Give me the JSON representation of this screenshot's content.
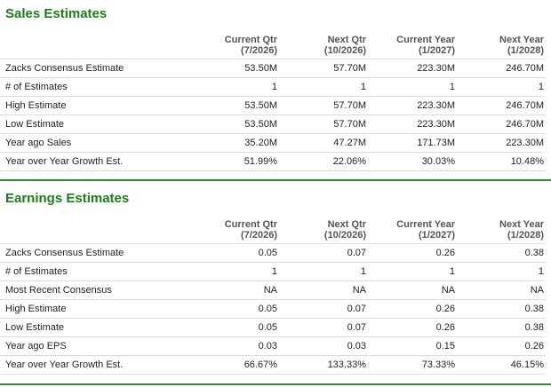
{
  "sales": {
    "title": "Sales Estimates",
    "columns": [
      {
        "label": "Current Qtr",
        "period": "(7/2026)"
      },
      {
        "label": "Next Qtr",
        "period": "(10/2026)"
      },
      {
        "label": "Current Year",
        "period": "(1/2027)"
      },
      {
        "label": "Next Year",
        "period": "(1/2028)"
      }
    ],
    "rows": [
      {
        "label": "Zacks Consensus Estimate",
        "values": [
          "53.50M",
          "57.70M",
          "223.30M",
          "246.70M"
        ]
      },
      {
        "label": "# of Estimates",
        "values": [
          "1",
          "1",
          "1",
          "1"
        ]
      },
      {
        "label": "High Estimate",
        "values": [
          "53.50M",
          "57.70M",
          "223.30M",
          "246.70M"
        ]
      },
      {
        "label": "Low Estimate",
        "values": [
          "53.50M",
          "57.70M",
          "223.30M",
          "246.70M"
        ]
      },
      {
        "label": "Year ago Sales",
        "values": [
          "35.20M",
          "47.27M",
          "171.73M",
          "223.30M"
        ]
      },
      {
        "label": "Year over Year Growth Est.",
        "values": [
          "51.99%",
          "22.06%",
          "30.03%",
          "10.48%"
        ]
      }
    ]
  },
  "earnings": {
    "title": "Earnings Estimates",
    "columns": [
      {
        "label": "Current Qtr",
        "period": "(7/2026)"
      },
      {
        "label": "Next Qtr",
        "period": "(10/2026)"
      },
      {
        "label": "Current Year",
        "period": "(1/2027)"
      },
      {
        "label": "Next Year",
        "period": "(1/2028)"
      }
    ],
    "rows": [
      {
        "label": "Zacks Consensus Estimate",
        "values": [
          "0.05",
          "0.07",
          "0.26",
          "0.38"
        ]
      },
      {
        "label": "# of Estimates",
        "values": [
          "1",
          "1",
          "1",
          "1"
        ]
      },
      {
        "label": "Most Recent Consensus",
        "values": [
          "NA",
          "NA",
          "NA",
          "NA"
        ]
      },
      {
        "label": "High Estimate",
        "values": [
          "0.05",
          "0.07",
          "0.26",
          "0.38"
        ]
      },
      {
        "label": "Low Estimate",
        "values": [
          "0.05",
          "0.07",
          "0.26",
          "0.38"
        ]
      },
      {
        "label": "Year ago EPS",
        "values": [
          "0.03",
          "0.03",
          "0.15",
          "0.26"
        ]
      },
      {
        "label": "Year over Year Growth Est.",
        "values": [
          "66.67%",
          "133.33%",
          "73.33%",
          "46.15%"
        ]
      }
    ]
  },
  "colors": {
    "title": "#1a7f1a",
    "divider": "#2e8b2e",
    "row_border": "#dcdcdc"
  }
}
